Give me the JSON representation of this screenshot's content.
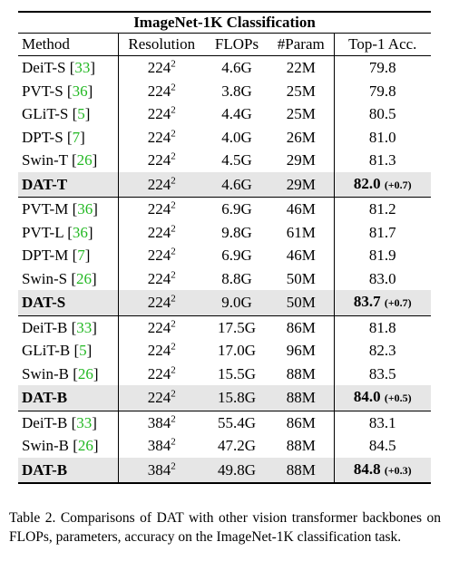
{
  "table": {
    "title": "ImageNet-1K Classification",
    "header": [
      "Method",
      "Resolution",
      "FLOPs",
      "#Param",
      "Top-1 Acc."
    ],
    "groups": [
      {
        "rows": [
          {
            "method": "DeiT-S",
            "cite": [
              "[",
              "33",
              "]"
            ],
            "res": "224",
            "exp": "2",
            "flops": "4.6G",
            "params": "22M",
            "top1": "79.8"
          },
          {
            "method": "PVT-S",
            "cite": [
              "[",
              "36",
              "]"
            ],
            "res": "224",
            "exp": "2",
            "flops": "3.8G",
            "params": "25M",
            "top1": "79.8"
          },
          {
            "method": "GLiT-S",
            "cite": [
              "[",
              "5",
              "]"
            ],
            "res": "224",
            "exp": "2",
            "flops": "4.4G",
            "params": "25M",
            "top1": "80.5"
          },
          {
            "method": "DPT-S",
            "cite": [
              "[",
              "7",
              "]"
            ],
            "res": "224",
            "exp": "2",
            "flops": "4.0G",
            "params": "26M",
            "top1": "81.0"
          },
          {
            "method": "Swin-T",
            "cite": [
              "[",
              "26",
              "]"
            ],
            "res": "224",
            "exp": "2",
            "flops": "4.5G",
            "params": "29M",
            "top1": "81.3"
          },
          {
            "method": "DAT-T",
            "res": "224",
            "exp": "2",
            "flops": "4.6G",
            "params": "29M",
            "top1": "82.0",
            "gain": "(+0.7)",
            "highlight": true
          }
        ]
      },
      {
        "rows": [
          {
            "method": "PVT-M",
            "cite": [
              "[",
              "36",
              "]"
            ],
            "res": "224",
            "exp": "2",
            "flops": "6.9G",
            "params": "46M",
            "top1": "81.2"
          },
          {
            "method": "PVT-L",
            "cite": [
              "[",
              "36",
              "]"
            ],
            "res": "224",
            "exp": "2",
            "flops": "9.8G",
            "params": "61M",
            "top1": "81.7"
          },
          {
            "method": "DPT-M",
            "cite": [
              "[",
              "7",
              "]"
            ],
            "res": "224",
            "exp": "2",
            "flops": "6.9G",
            "params": "46M",
            "top1": "81.9"
          },
          {
            "method": "Swin-S",
            "cite": [
              "[",
              "26",
              "]"
            ],
            "res": "224",
            "exp": "2",
            "flops": "8.8G",
            "params": "50M",
            "top1": "83.0"
          },
          {
            "method": "DAT-S",
            "res": "224",
            "exp": "2",
            "flops": "9.0G",
            "params": "50M",
            "top1": "83.7",
            "gain": "(+0.7)",
            "highlight": true
          }
        ]
      },
      {
        "rows": [
          {
            "method": "DeiT-B",
            "cite": [
              "[",
              "33",
              "]"
            ],
            "res": "224",
            "exp": "2",
            "flops": "17.5G",
            "params": "86M",
            "top1": "81.8"
          },
          {
            "method": "GLiT-B",
            "cite": [
              "[",
              "5",
              "]"
            ],
            "res": "224",
            "exp": "2",
            "flops": "17.0G",
            "params": "96M",
            "top1": "82.3"
          },
          {
            "method": "Swin-B",
            "cite": [
              "[",
              "26",
              "]"
            ],
            "res": "224",
            "exp": "2",
            "flops": "15.5G",
            "params": "88M",
            "top1": "83.5"
          },
          {
            "method": "DAT-B",
            "res": "224",
            "exp": "2",
            "flops": "15.8G",
            "params": "88M",
            "top1": "84.0",
            "gain": "(+0.5)",
            "highlight": true
          }
        ]
      },
      {
        "rows": [
          {
            "method": "DeiT-B",
            "cite": [
              "[",
              "33",
              "]"
            ],
            "res": "384",
            "exp": "2",
            "flops": "55.4G",
            "params": "86M",
            "top1": "83.1"
          },
          {
            "method": "Swin-B",
            "cite": [
              "[",
              "26",
              "]"
            ],
            "res": "384",
            "exp": "2",
            "flops": "47.2G",
            "params": "88M",
            "top1": "84.5"
          },
          {
            "method": "DAT-B",
            "res": "384",
            "exp": "2",
            "flops": "49.8G",
            "params": "88M",
            "top1": "84.8",
            "gain": "(+0.3)",
            "highlight": true
          }
        ]
      }
    ]
  },
  "caption": "Table 2. Comparisons of DAT with other vision transformer backbones on FLOPs, parameters, accuracy on the ImageNet-1K classification task."
}
